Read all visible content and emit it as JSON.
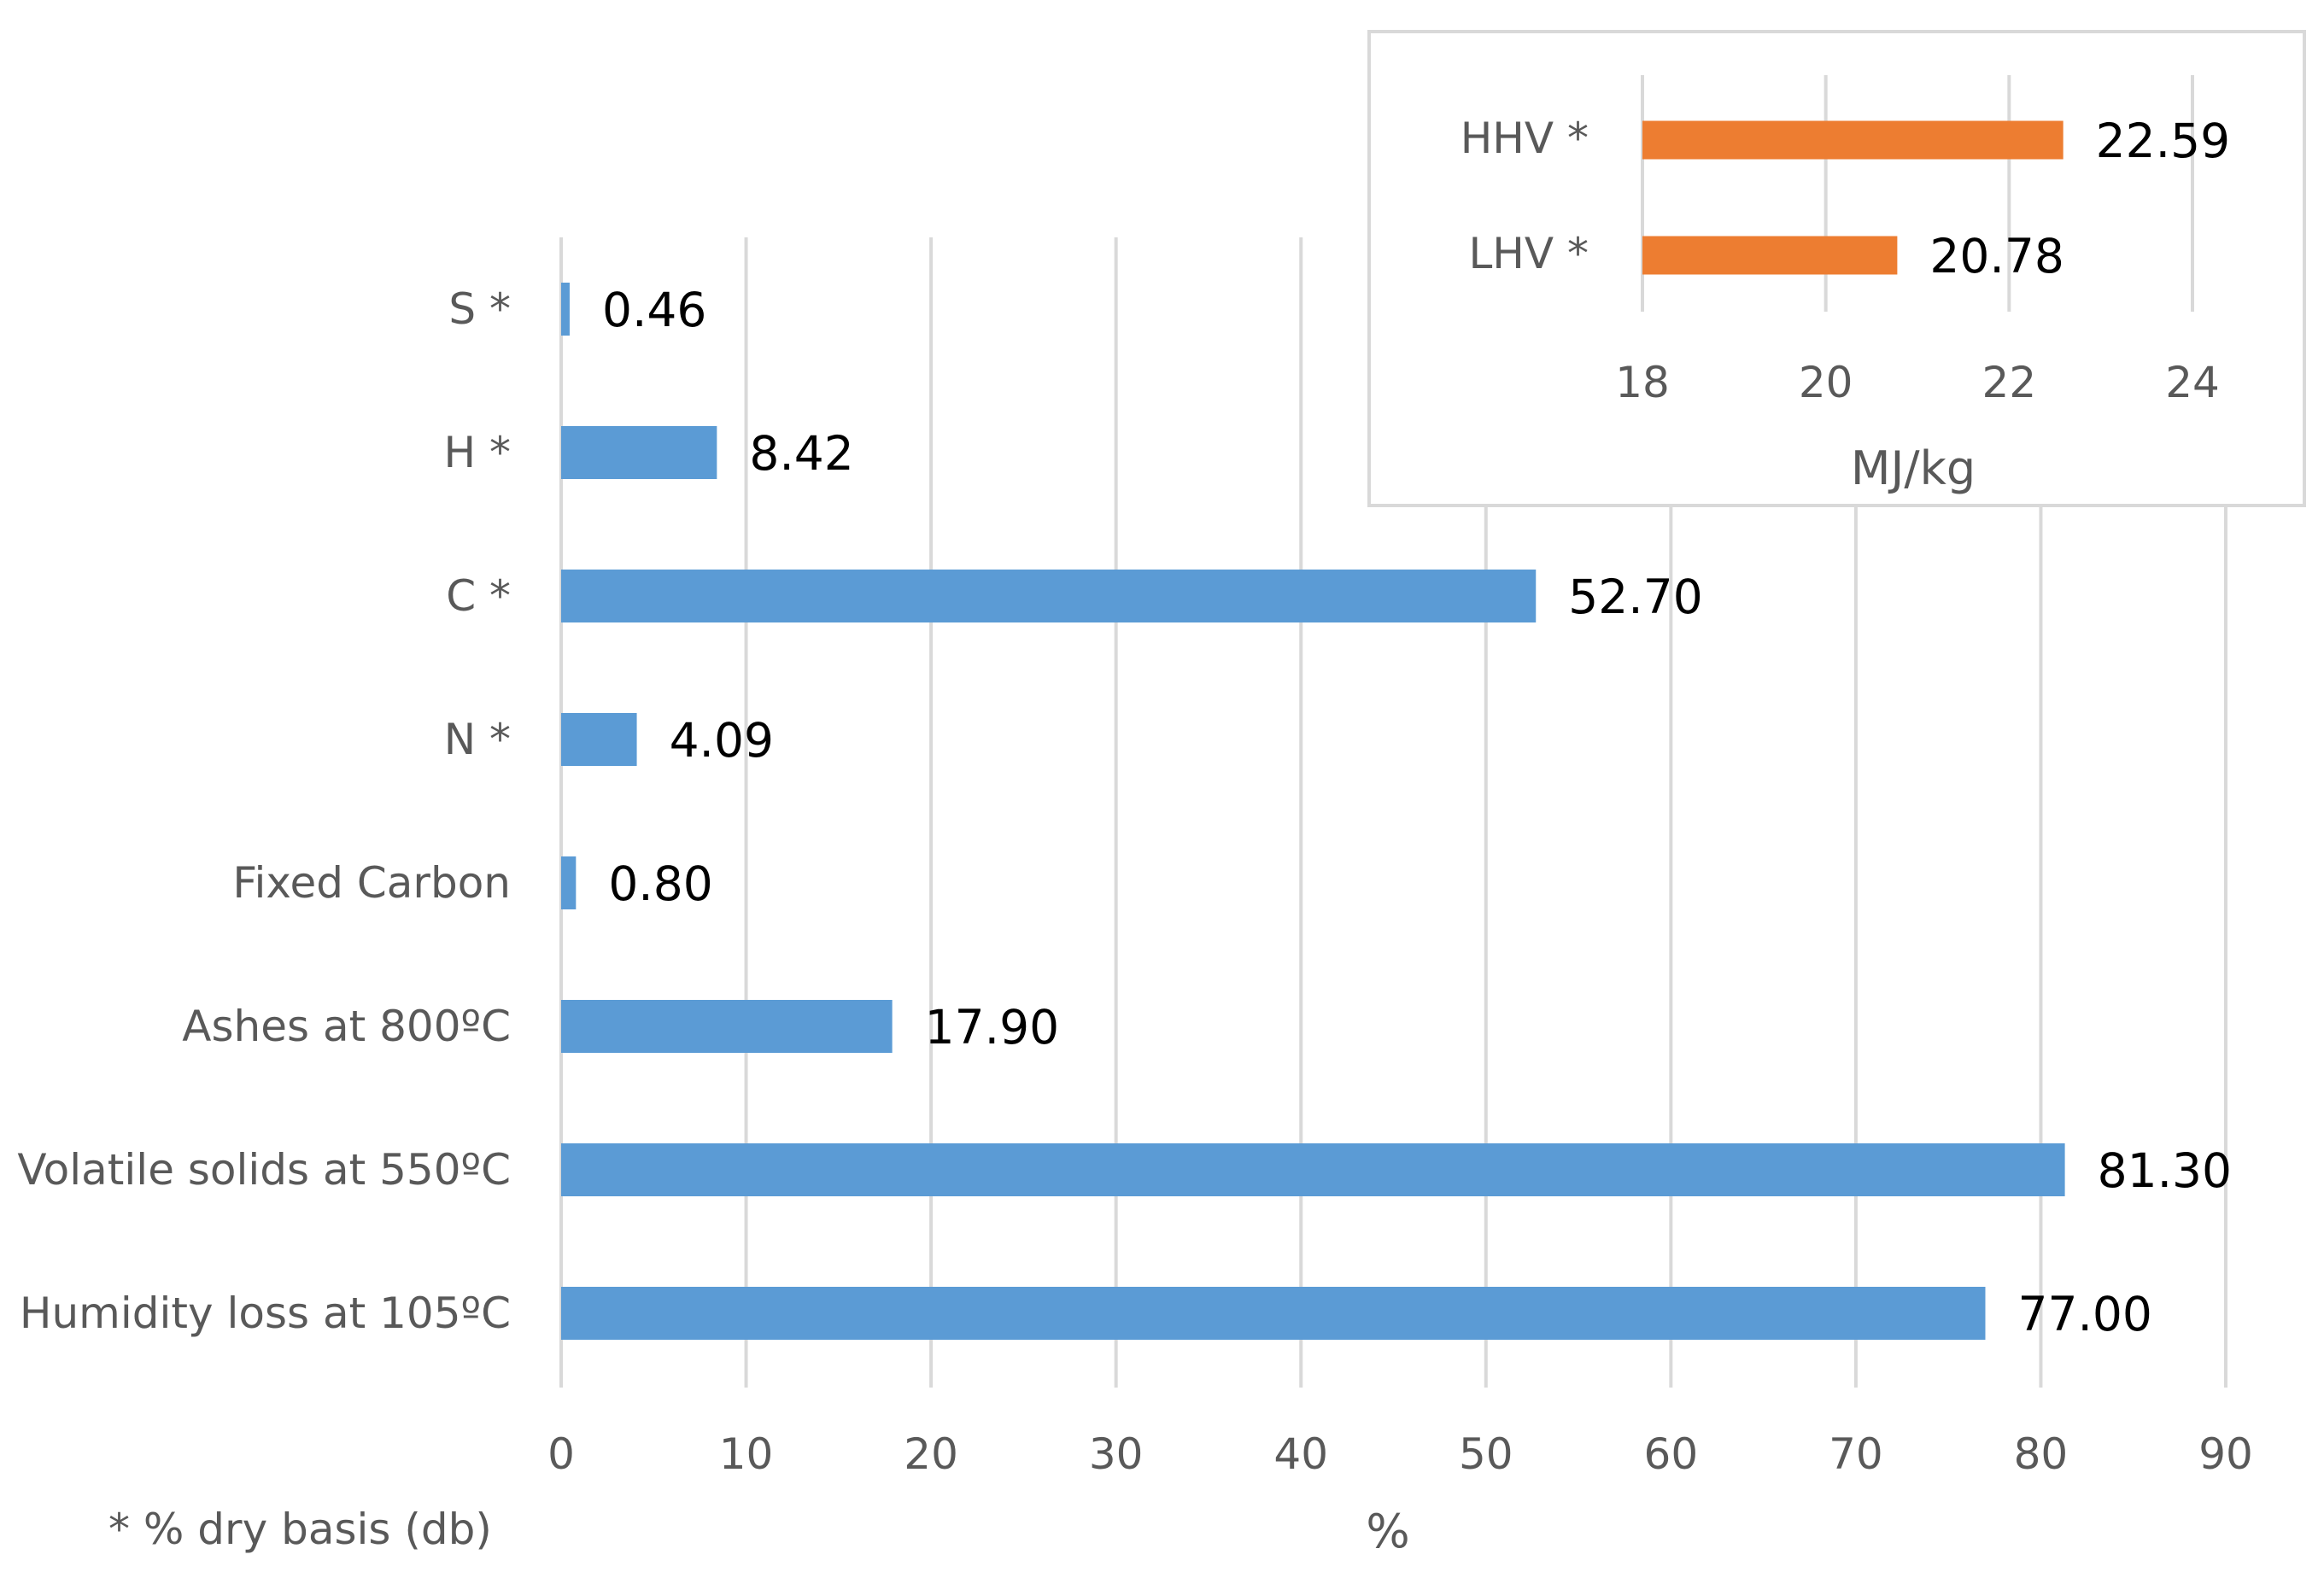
{
  "chart_data": [
    {
      "type": "bar",
      "orientation": "horizontal",
      "categories": [
        "S *",
        "H *",
        "C *",
        "N *",
        "Fixed Carbon",
        "Ashes at 800ºC",
        "Volatile solids at 550ºC",
        "Humidity loss at 105ºC"
      ],
      "values": [
        0.46,
        8.42,
        52.7,
        4.09,
        0.8,
        17.9,
        81.3,
        77.0
      ],
      "data_labels": [
        "0.46",
        "8.42",
        "52.70",
        "4.09",
        "0.80",
        "17.90",
        "81.30",
        "77.00"
      ],
      "xlim": [
        0,
        90
      ],
      "ticks": [
        "0",
        "10",
        "20",
        "30",
        "40",
        "50",
        "60",
        "70",
        "80",
        "90"
      ],
      "xlabel": "%",
      "color": "#5B9BD5",
      "grid": true,
      "footnote": "* %  dry basis (db)"
    },
    {
      "type": "bar",
      "orientation": "horizontal",
      "categories": [
        "HHV *",
        "LHV *"
      ],
      "values": [
        22.59,
        20.78
      ],
      "data_labels": [
        "22.59",
        "20.78"
      ],
      "xlim": [
        18,
        24
      ],
      "ticks": [
        "18",
        "20",
        "22",
        "24"
      ],
      "xlabel": "MJ/kg",
      "color": "#ED7D31",
      "grid": true
    }
  ]
}
